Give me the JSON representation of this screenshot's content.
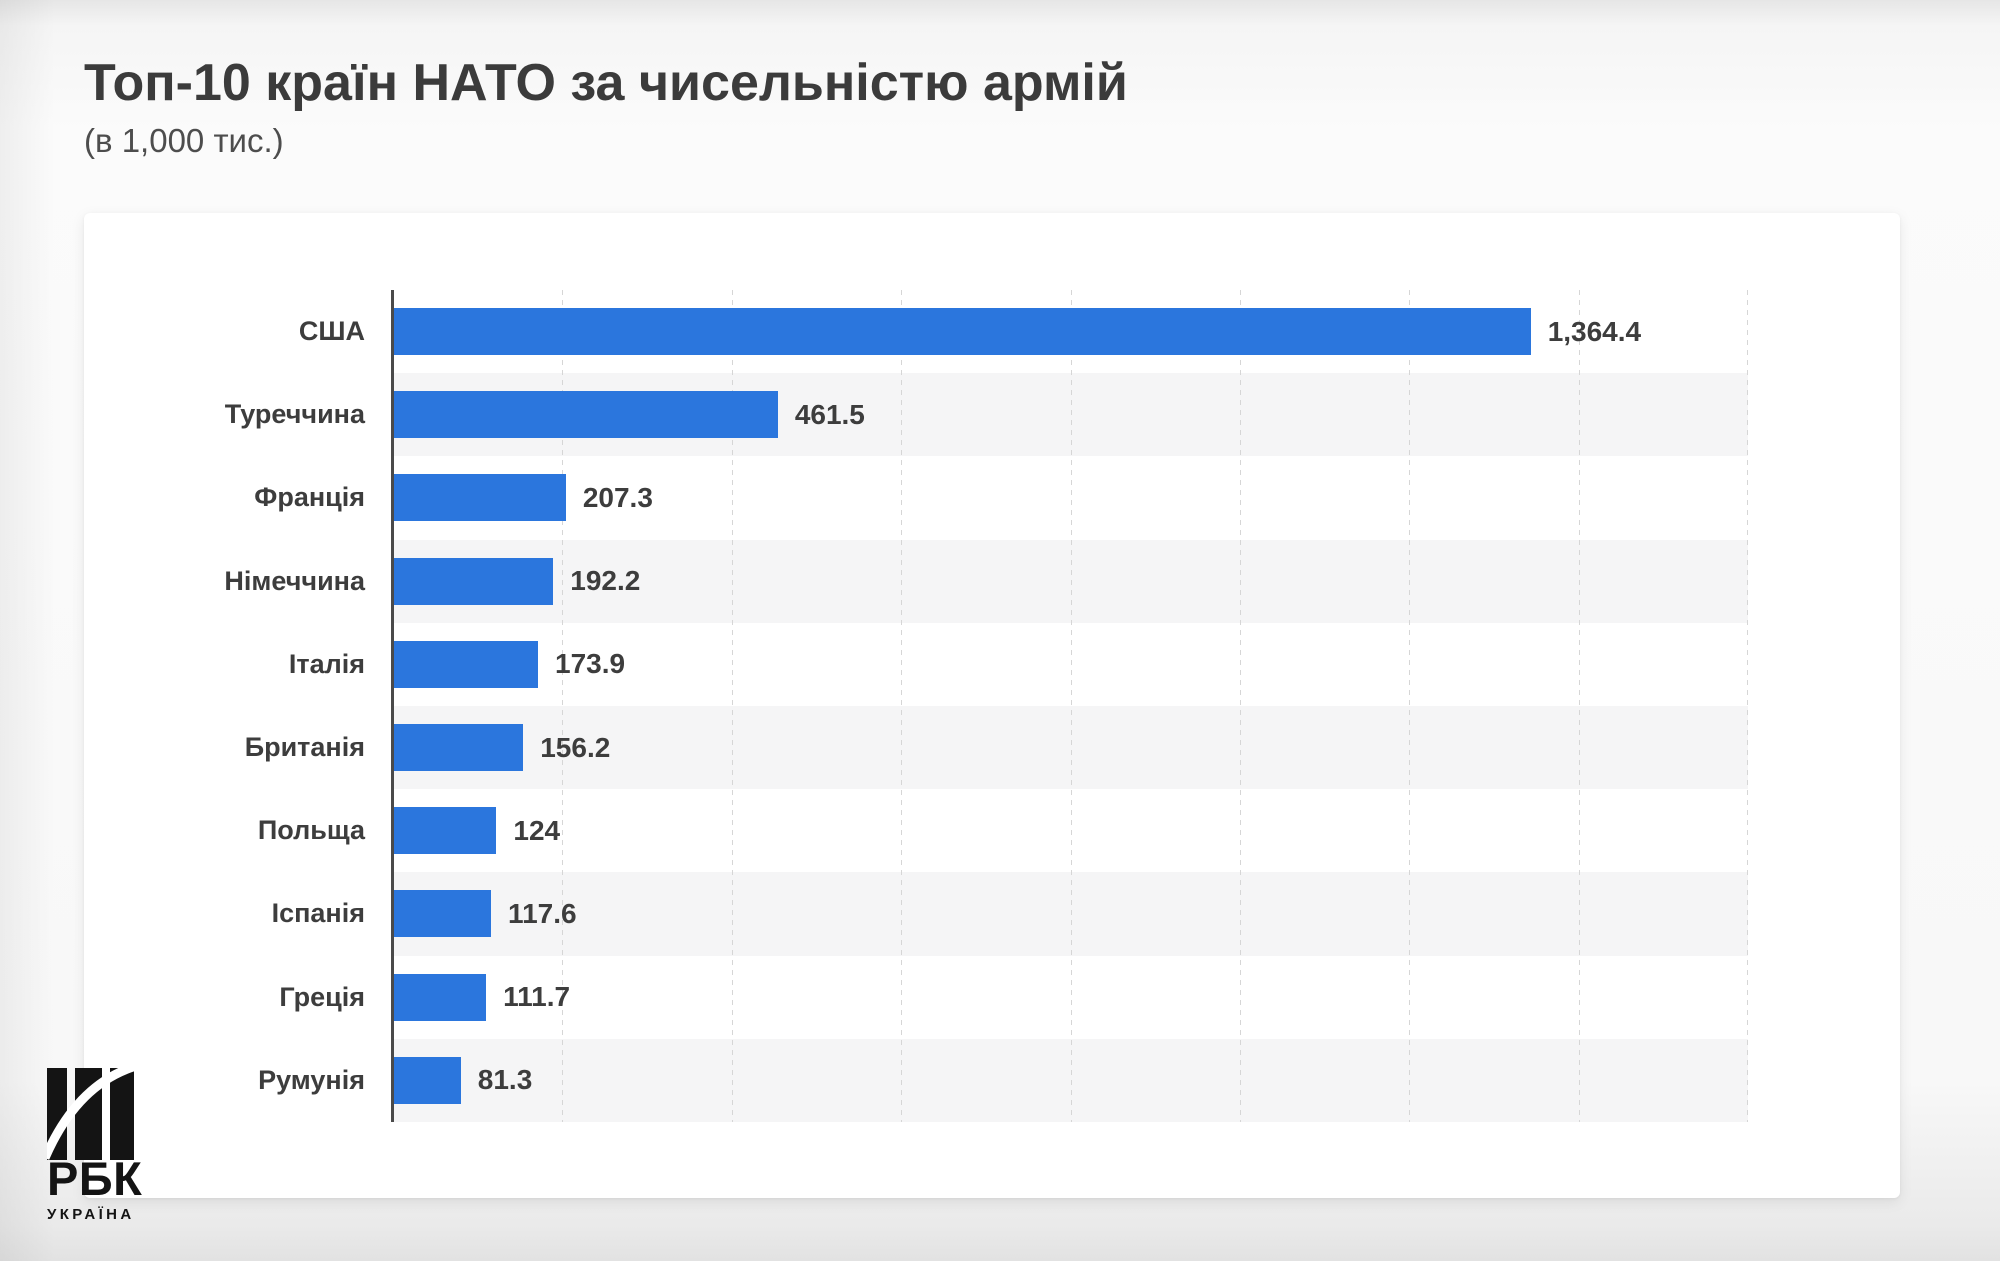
{
  "header": {
    "title": "Топ-10 країн НАТО за чисельністю армій",
    "subtitle": "(в 1,000 тис.)"
  },
  "chart_data": {
    "type": "bar",
    "orientation": "horizontal",
    "title": "Топ-10 країн НАТО за чисельністю армій",
    "subtitle": "(в 1,000 тис.)",
    "categories": [
      "США",
      "Туреччина",
      "Франція",
      "Німеччина",
      "Італія",
      "Британія",
      "Польща",
      "Іспанія",
      "Греція",
      "Румунія"
    ],
    "values": [
      1364.4,
      461.5,
      207.3,
      192.2,
      173.9,
      156.2,
      124,
      117.6,
      111.7,
      81.3
    ],
    "value_labels": [
      "1,364.4",
      "461.5",
      "207.3",
      "192.2",
      "173.9",
      "156.2",
      "124",
      "117.6",
      "111.7",
      "81.3"
    ],
    "xlabel": "",
    "ylabel": "",
    "xlim": [
      0,
      1625
    ],
    "x_tick_labels_visible": false,
    "gridline_count": 8,
    "grid": "vertical-dashed",
    "legend": "none",
    "bar_color": "#2b76dd",
    "band_color": "#f5f5f6",
    "gridline_color": "#d6d6d6",
    "axis_line_color": "#4a4a4a",
    "label_color": "#3d3d3d"
  },
  "logo": {
    "brand": "РБК",
    "sub": "УКРАЇНА"
  }
}
